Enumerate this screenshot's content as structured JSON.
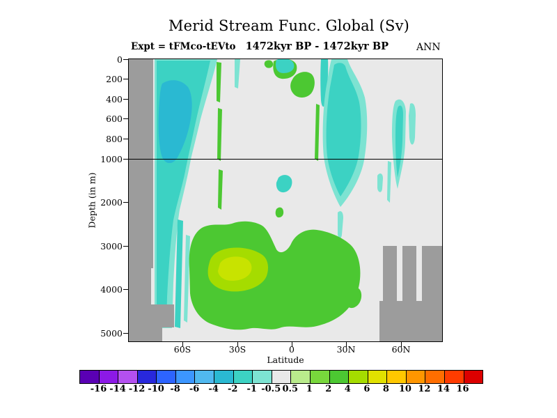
{
  "title": "Merid Stream Func. Global (Sv)",
  "subtitle": {
    "experiment": "Expt = tFMco-tEVto",
    "period": "1472kyr BP - 1472kyr BP"
  },
  "season": "ANN",
  "axes": {
    "y": {
      "label": "Depth (in m)",
      "ticks": [
        "0",
        "200",
        "400",
        "600",
        "800",
        "1000",
        "2000",
        "3000",
        "4000",
        "5000"
      ]
    },
    "x": {
      "label": "Latitude",
      "ticks": [
        "60S",
        "30S",
        "0",
        "30N",
        "60N"
      ]
    }
  },
  "reference_line_depth_m": 1000,
  "palette": {
    "plot_bg": "#e9e9e9",
    "topo_gray": "#9c9c9c",
    "cyan_light": "#7de3d2",
    "cyan_mid": "#3cd2c3",
    "cyan_deep": "#2ab9d2",
    "green_main": "#4cc832",
    "green_yellow": "#a5dc00",
    "yellow_core": "#c8e300"
  },
  "colorbar": {
    "labels": [
      "-16",
      "-14",
      "-12",
      "-10",
      "-8",
      "-6",
      "-4",
      "-2",
      "-1",
      "-0.5",
      "0.5",
      "1",
      "2",
      "4",
      "6",
      "8",
      "10",
      "12",
      "14",
      "16"
    ],
    "colors": [
      "#5a00b4",
      "#8c19e6",
      "#b450f0",
      "#2828dc",
      "#2d64ff",
      "#3c96ff",
      "#50b9f0",
      "#2ab9d2",
      "#3cd2c3",
      "#7de3d2",
      "#e9e9e9",
      "#b9eb8c",
      "#78d73c",
      "#4cc832",
      "#a5dc00",
      "#e1e100",
      "#ffc800",
      "#ff9600",
      "#ff6e00",
      "#ff3c00",
      "#dc0000"
    ]
  },
  "chart_data": {
    "type": "heatmap",
    "variable": "Meridional overturning stream function difference",
    "units": "Sv",
    "title": "Merid Stream Func. Global (Sv)",
    "xlabel": "Latitude",
    "ylabel": "Depth (in m)",
    "x_ticks": [
      "60S",
      "30S",
      "0",
      "30N",
      "60N"
    ],
    "y_ticks": [
      0,
      200,
      400,
      600,
      800,
      1000,
      2000,
      3000,
      4000,
      5000
    ],
    "x_range": [
      "89S",
      "82N"
    ],
    "y_range_m": [
      0,
      5200
    ],
    "y_axis_note": "depth axis stretched above 1000 m; horizontal reference line drawn at 1000 m",
    "contour_levels": [
      -16,
      -14,
      -12,
      -10,
      -8,
      -6,
      -4,
      -2,
      -1,
      -0.5,
      0.5,
      1,
      2,
      4,
      6,
      8,
      10,
      12,
      14,
      16
    ],
    "background_band_sv": "-0.5 to 0.5",
    "features": [
      {
        "name": "southern upper-ocean negative cell",
        "lat": "75S-41S",
        "depth_m": "0-2000",
        "value_sv": "-4 to -0.5"
      },
      {
        "name": "deep southern negative streaks",
        "lat": "66S-57S",
        "depth_m": "2000-5000",
        "value_sv": "-2 to -0.5"
      },
      {
        "name": "thin positive slivers",
        "lat": "42S-38S",
        "depth_m": "0-2800",
        "value_sv": "0.5 to 2"
      },
      {
        "name": "equatorial surface negative patch",
        "lat": "9S-2N",
        "depth_m": "0-150",
        "value_sv": "-2 to -0.5"
      },
      {
        "name": "equatorial thermocline positive patch",
        "lat": "2S-13N",
        "depth_m": "150-450",
        "value_sv": "0.5 to 2"
      },
      {
        "name": "northern subtropical negative cell",
        "lat": "17N-40N",
        "depth_m": "0-2200",
        "value_sv": "-2 to -0.5"
      },
      {
        "name": "high-northern negative streak",
        "lat": "55N-65N",
        "depth_m": "400-1700",
        "value_sv": "-2 to -0.5"
      },
      {
        "name": "mid-depth equatorial negative blob",
        "lat": "8S-0",
        "depth_m": "1400-1800",
        "value_sv": "-1 to -0.5"
      },
      {
        "name": "deep positive cell",
        "lat": "57S-38N",
        "depth_m": "2500-5000",
        "value_sv": "0.5 to 4",
        "core": {
          "lat": "45S-13S",
          "depth_m": "3400-4100",
          "value_sv": "4 to 6"
        }
      }
    ],
    "topography_gray": [
      {
        "lat": "89S-76S",
        "depth_m": "0-5200",
        "shape": "full-depth wall, wider below 4400 m"
      },
      {
        "lat": "49N-82N",
        "depth_m": "3000-5200",
        "shape": "stepped ridges over a basal block below 4300 m"
      }
    ],
    "legend_position": "horizontal colorbar at bottom",
    "grid": false
  }
}
